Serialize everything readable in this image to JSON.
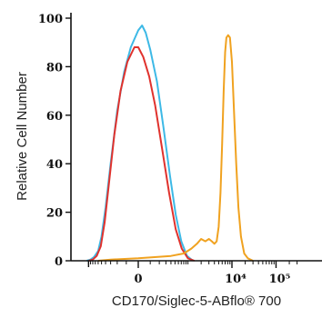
{
  "chart_data": {
    "type": "line",
    "title": "",
    "xlabel": "CD170/Siglec-5-ABflo® 700",
    "ylabel": "Relative Cell Number",
    "ylim": [
      0,
      100
    ],
    "y_ticks": [
      0,
      20,
      40,
      60,
      80,
      100
    ],
    "y_tick_labels": [
      "0",
      "20",
      "40",
      "60",
      "80",
      "100"
    ],
    "x_scale": "biexponential",
    "x_tick_labels": [
      {
        "label": "0",
        "value": 0
      },
      {
        "label": "10⁴",
        "value": 10000
      },
      {
        "label": "10⁵",
        "value": 100000
      }
    ],
    "grid": false,
    "legend": "none",
    "series": [
      {
        "color": "#3db9e6",
        "points": [
          [
            -1100,
            0
          ],
          [
            -900,
            0.5
          ],
          [
            -750,
            1.5
          ],
          [
            -600,
            4
          ],
          [
            -500,
            10
          ],
          [
            -400,
            22
          ],
          [
            -300,
            40
          ],
          [
            -200,
            62
          ],
          [
            -120,
            78
          ],
          [
            -60,
            88
          ],
          [
            0,
            95
          ],
          [
            30,
            97
          ],
          [
            60,
            94
          ],
          [
            100,
            87
          ],
          [
            170,
            74
          ],
          [
            260,
            55
          ],
          [
            380,
            35
          ],
          [
            520,
            19
          ],
          [
            700,
            8
          ],
          [
            950,
            2
          ],
          [
            1300,
            0
          ]
        ]
      },
      {
        "color": "#e0322d",
        "points": [
          [
            -1000,
            0
          ],
          [
            -800,
            0.5
          ],
          [
            -650,
            2
          ],
          [
            -520,
            6
          ],
          [
            -420,
            16
          ],
          [
            -330,
            32
          ],
          [
            -240,
            52
          ],
          [
            -160,
            70
          ],
          [
            -90,
            82
          ],
          [
            -30,
            88
          ],
          [
            0,
            88
          ],
          [
            40,
            84
          ],
          [
            90,
            76
          ],
          [
            150,
            64
          ],
          [
            240,
            46
          ],
          [
            360,
            28
          ],
          [
            520,
            13
          ],
          [
            720,
            5
          ],
          [
            1000,
            1
          ],
          [
            1400,
            0
          ]
        ]
      },
      {
        "color": "#f0a220",
        "points": [
          [
            -600,
            0
          ],
          [
            -300,
            0.5
          ],
          [
            0,
            1
          ],
          [
            400,
            2
          ],
          [
            800,
            3
          ],
          [
            1200,
            5
          ],
          [
            1600,
            7
          ],
          [
            2000,
            9
          ],
          [
            2500,
            8
          ],
          [
            3000,
            9
          ],
          [
            3500,
            8
          ],
          [
            4000,
            7
          ],
          [
            4500,
            8
          ],
          [
            5000,
            14
          ],
          [
            5500,
            28
          ],
          [
            6000,
            48
          ],
          [
            6500,
            70
          ],
          [
            7000,
            86
          ],
          [
            7500,
            92
          ],
          [
            8200,
            93
          ],
          [
            9000,
            92
          ],
          [
            10000,
            82
          ],
          [
            11000,
            64
          ],
          [
            12500,
            40
          ],
          [
            14000,
            22
          ],
          [
            16000,
            10
          ],
          [
            19000,
            3
          ],
          [
            23000,
            1
          ],
          [
            30000,
            0
          ]
        ]
      }
    ]
  }
}
